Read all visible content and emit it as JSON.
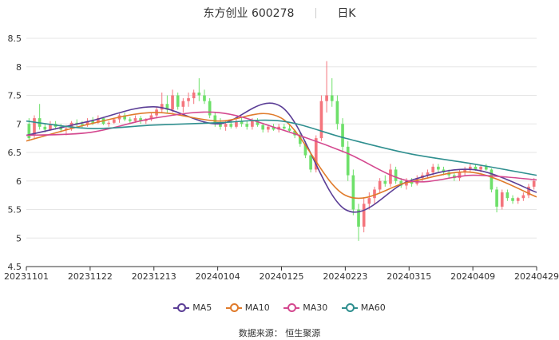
{
  "header": {
    "name": "东方创业",
    "code": "600278",
    "period": "日K"
  },
  "source": "数据来源： 恒生聚源",
  "colors": {
    "up": "#f4757d",
    "down": "#6ee06a",
    "grid": "#e6e6e6",
    "axis": "#333333"
  },
  "chart_data": {
    "type": "line",
    "ylim": [
      4.5,
      8.5
    ],
    "y_ticks": [
      "4.5",
      "5",
      "5.5",
      "6",
      "6.5",
      "7",
      "7.5",
      "8",
      "8.5"
    ],
    "x_tick_labels": [
      "20231101",
      "20231122",
      "20231213",
      "20240104",
      "20240125",
      "20240223",
      "20240315",
      "20240409",
      "20240429"
    ],
    "x": [
      "20231101",
      "20231122",
      "20231213",
      "20240104",
      "20240125",
      "20240223",
      "20240315",
      "20240409",
      "20240429"
    ],
    "grid": true,
    "legend_position": "bottom",
    "series": [
      {
        "name": "MA5",
        "color": "#5b3e96",
        "values": [
          6.8,
          7.05,
          7.3,
          7.0,
          7.3,
          5.5,
          6.0,
          6.2,
          5.8
        ]
      },
      {
        "name": "MA10",
        "color": "#e07b2b",
        "values": [
          6.7,
          7.0,
          7.2,
          7.05,
          7.1,
          5.75,
          5.98,
          6.15,
          5.72
        ]
      },
      {
        "name": "MA30",
        "color": "#d4488f",
        "values": [
          6.8,
          6.85,
          7.1,
          7.2,
          6.9,
          6.5,
          6.0,
          6.1,
          6.02
        ]
      },
      {
        "name": "MA60",
        "color": "#2f8f8f",
        "values": [
          7.05,
          6.92,
          6.98,
          7.02,
          7.05,
          6.75,
          6.48,
          6.3,
          6.1
        ]
      }
    ],
    "candles": [
      [
        7.0,
        7.1,
        6.7,
        6.75
      ],
      [
        6.8,
        7.15,
        6.75,
        7.1
      ],
      [
        7.1,
        7.35,
        6.9,
        6.95
      ],
      [
        6.95,
        7.0,
        6.85,
        6.9
      ],
      [
        6.9,
        7.05,
        6.88,
        7.0
      ],
      [
        7.0,
        7.05,
        6.9,
        6.95
      ],
      [
        6.95,
        7.0,
        6.85,
        6.9
      ],
      [
        6.9,
        6.98,
        6.8,
        6.92
      ],
      [
        6.92,
        7.05,
        6.88,
        7.02
      ],
      [
        7.02,
        7.08,
        6.95,
        7.0
      ],
      [
        7.0,
        7.05,
        6.92,
        6.98
      ],
      [
        6.98,
        7.1,
        6.95,
        7.05
      ],
      [
        7.05,
        7.12,
        6.98,
        7.02
      ],
      [
        7.02,
        7.15,
        7.0,
        7.1
      ],
      [
        7.1,
        7.12,
        6.98,
        7.0
      ],
      [
        7.0,
        7.05,
        6.95,
        7.02
      ],
      [
        7.02,
        7.1,
        7.0,
        7.08
      ],
      [
        7.08,
        7.18,
        7.02,
        7.15
      ],
      [
        7.15,
        7.2,
        7.05,
        7.08
      ],
      [
        7.08,
        7.12,
        7.0,
        7.05
      ],
      [
        7.05,
        7.15,
        7.02,
        7.1
      ],
      [
        7.1,
        7.14,
        7.0,
        7.05
      ],
      [
        7.05,
        7.1,
        7.0,
        7.08
      ],
      [
        7.08,
        7.2,
        7.05,
        7.15
      ],
      [
        7.15,
        7.3,
        7.1,
        7.25
      ],
      [
        7.25,
        7.55,
        7.2,
        7.35
      ],
      [
        7.35,
        7.5,
        7.2,
        7.25
      ],
      [
        7.25,
        7.6,
        7.2,
        7.5
      ],
      [
        7.5,
        7.55,
        7.25,
        7.3
      ],
      [
        7.3,
        7.45,
        7.2,
        7.4
      ],
      [
        7.4,
        7.55,
        7.3,
        7.45
      ],
      [
        7.45,
        7.6,
        7.35,
        7.55
      ],
      [
        7.55,
        7.8,
        7.4,
        7.5
      ],
      [
        7.5,
        7.6,
        7.35,
        7.4
      ],
      [
        7.4,
        7.45,
        7.1,
        7.15
      ],
      [
        7.15,
        7.2,
        6.95,
        7.0
      ],
      [
        7.0,
        7.1,
        6.9,
        6.95
      ],
      [
        6.95,
        7.05,
        6.88,
        7.0
      ],
      [
        7.0,
        7.08,
        6.92,
        6.95
      ],
      [
        6.95,
        7.1,
        6.92,
        7.05
      ],
      [
        7.05,
        7.12,
        6.95,
        7.0
      ],
      [
        7.0,
        7.05,
        6.9,
        6.95
      ],
      [
        6.95,
        7.1,
        6.9,
        7.05
      ],
      [
        7.05,
        7.1,
        6.95,
        6.98
      ],
      [
        6.98,
        7.02,
        6.85,
        6.9
      ],
      [
        6.9,
        6.98,
        6.85,
        6.95
      ],
      [
        6.95,
        7.0,
        6.88,
        6.9
      ],
      [
        6.9,
        7.0,
        6.85,
        6.95
      ],
      [
        6.95,
        7.0,
        6.9,
        6.92
      ],
      [
        6.92,
        6.98,
        6.85,
        6.88
      ],
      [
        6.88,
        6.9,
        6.75,
        6.8
      ],
      [
        6.8,
        6.85,
        6.6,
        6.65
      ],
      [
        6.65,
        6.7,
        6.4,
        6.45
      ],
      [
        6.45,
        6.5,
        6.15,
        6.2
      ],
      [
        6.2,
        6.8,
        6.15,
        6.75
      ],
      [
        6.75,
        7.5,
        6.7,
        7.4
      ],
      [
        7.4,
        8.1,
        7.2,
        7.5
      ],
      [
        7.5,
        7.8,
        7.3,
        7.4
      ],
      [
        7.4,
        7.5,
        6.9,
        7.0
      ],
      [
        7.0,
        7.1,
        6.5,
        6.6
      ],
      [
        6.6,
        6.7,
        6.0,
        6.1
      ],
      [
        6.1,
        6.2,
        5.4,
        5.5
      ],
      [
        5.5,
        5.6,
        4.95,
        5.2
      ],
      [
        5.2,
        5.7,
        5.1,
        5.6
      ],
      [
        5.6,
        5.8,
        5.5,
        5.7
      ],
      [
        5.7,
        5.9,
        5.6,
        5.85
      ],
      [
        5.85,
        6.05,
        5.8,
        6.0
      ],
      [
        6.0,
        6.1,
        5.9,
        5.95
      ],
      [
        5.95,
        6.3,
        5.9,
        6.2
      ],
      [
        6.2,
        6.25,
        5.95,
        6.0
      ],
      [
        6.0,
        6.05,
        5.88,
        5.92
      ],
      [
        5.92,
        6.05,
        5.85,
        6.0
      ],
      [
        6.0,
        6.05,
        5.9,
        5.95
      ],
      [
        5.95,
        6.1,
        5.92,
        6.05
      ],
      [
        6.05,
        6.15,
        6.0,
        6.1
      ],
      [
        6.1,
        6.2,
        6.05,
        6.15
      ],
      [
        6.15,
        6.3,
        6.1,
        6.25
      ],
      [
        6.25,
        6.3,
        6.15,
        6.2
      ],
      [
        6.2,
        6.25,
        6.1,
        6.15
      ],
      [
        6.15,
        6.2,
        6.05,
        6.1
      ],
      [
        6.1,
        6.15,
        6.0,
        6.05
      ],
      [
        6.05,
        6.2,
        6.0,
        6.15
      ],
      [
        6.15,
        6.25,
        6.1,
        6.2
      ],
      [
        6.2,
        6.3,
        6.15,
        6.25
      ],
      [
        6.25,
        6.3,
        6.18,
        6.2
      ],
      [
        6.2,
        6.28,
        6.15,
        6.25
      ],
      [
        6.25,
        6.3,
        6.18,
        6.2
      ],
      [
        6.2,
        6.22,
        5.8,
        5.85
      ],
      [
        5.85,
        5.9,
        5.45,
        5.55
      ],
      [
        5.55,
        5.85,
        5.5,
        5.8
      ],
      [
        5.8,
        5.85,
        5.65,
        5.7
      ],
      [
        5.7,
        5.75,
        5.6,
        5.65
      ],
      [
        5.65,
        5.72,
        5.6,
        5.7
      ],
      [
        5.7,
        5.8,
        5.65,
        5.75
      ],
      [
        5.75,
        5.95,
        5.7,
        5.9
      ],
      [
        5.9,
        6.05,
        5.85,
        6.0
      ]
    ]
  }
}
